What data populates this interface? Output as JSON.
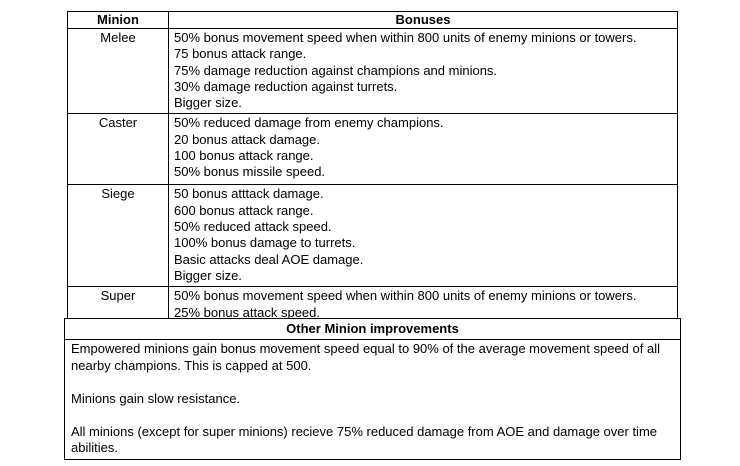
{
  "table": {
    "headers": {
      "minion": "Minion",
      "bonuses": "Bonuses"
    },
    "rows": [
      {
        "minion": "Melee",
        "bonuses": [
          "50% bonus movement speed when within 800 units of enemy minions or towers.",
          "75 bonus attack range.",
          "75% damage reduction against champions and minions.",
          "30% damage reduction against turrets.",
          "Bigger size."
        ]
      },
      {
        "minion": "Caster",
        "bonuses": [
          "50% reduced damage from enemy champions.",
          "20 bonus attack damage.",
          "100 bonus attack range.",
          "50% bonus missile speed."
        ]
      },
      {
        "minion": "Siege",
        "bonuses": [
          "50 bonus atttack damage.",
          "600 bonus attack range.",
          "50% reduced attack speed.",
          "100% bonus damage to turrets.",
          "Basic attacks deal AOE damage.",
          "Bigger size."
        ]
      },
      {
        "minion": "Super",
        "bonuses": [
          "50% bonus movement speed when within 800 units of enemy minions or towers.",
          "25% bonus attack speed."
        ]
      }
    ]
  },
  "other": {
    "header": "Other Minion improvements",
    "paragraphs": [
      "Empowered minions gain bonus movement speed equal to 90% of the average movement speed of all nearby champions. This is capped at 500.",
      "Minions gain slow resistance.",
      "All minions (except for super minions) recieve 75% reduced damage from AOE and damage over time abilities."
    ]
  },
  "colors": {
    "text": "#000000",
    "border": "#000000",
    "background": "#ffffff"
  }
}
